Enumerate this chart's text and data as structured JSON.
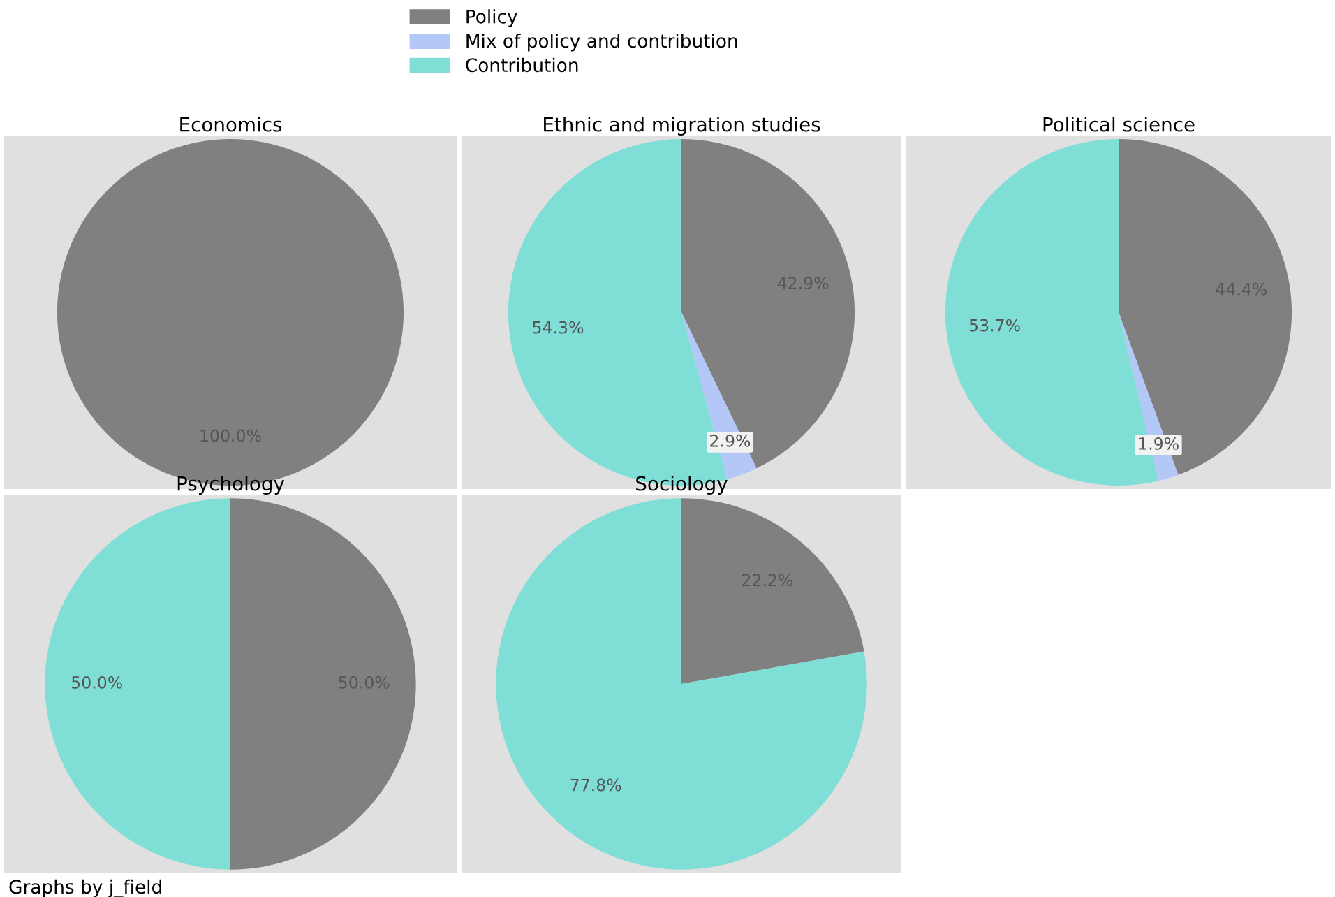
{
  "chart_data": [
    {
      "type": "pie",
      "title": "Economics",
      "categories": [
        "Policy",
        "Mix of policy and contribution",
        "Contribution"
      ],
      "values": [
        100,
        0,
        0
      ],
      "colors": [
        "#808080",
        "#b4c8f8",
        "#7fded6"
      ],
      "value_labels": [
        "100.0%",
        null,
        null
      ],
      "legend": "top"
    },
    {
      "type": "pie",
      "title": "Ethnic and migration studies",
      "categories": [
        null,
        null,
        null
      ],
      "values": [
        42.9,
        2.9,
        54.3
      ],
      "colors": [
        "#808080",
        "#b4c8f8",
        "#7fded6"
      ],
      "value_labels": [
        "42.9%",
        "2.9%",
        "54.3%"
      ]
    },
    {
      "type": "pie",
      "title": "Political science",
      "categories": [
        null,
        null,
        null
      ],
      "values": [
        44.4,
        1.9,
        53.7
      ],
      "colors": [
        "#808080",
        "#b4c8f8",
        "#7fded6"
      ],
      "value_labels": [
        "44.4%",
        "1.9%",
        "53.7%"
      ]
    },
    {
      "type": "pie",
      "title": "Psychology",
      "categories": [
        null,
        null,
        null
      ],
      "values": [
        50.0,
        0,
        50.0
      ],
      "colors": [
        "#808080",
        "#b4c8f8",
        "#7fded6"
      ],
      "value_labels": [
        "50.0%",
        null,
        "50.0%"
      ]
    },
    {
      "type": "pie",
      "title": "Sociology",
      "categories": [
        null,
        null,
        null
      ],
      "values": [
        22.2,
        0,
        77.8
      ],
      "colors": [
        "#808080",
        "#b4c8f8",
        "#7fded6"
      ],
      "value_labels": [
        "22.2%",
        null,
        "77.8%"
      ],
      "annotations": [
        "Graphs by j_field"
      ]
    }
  ]
}
